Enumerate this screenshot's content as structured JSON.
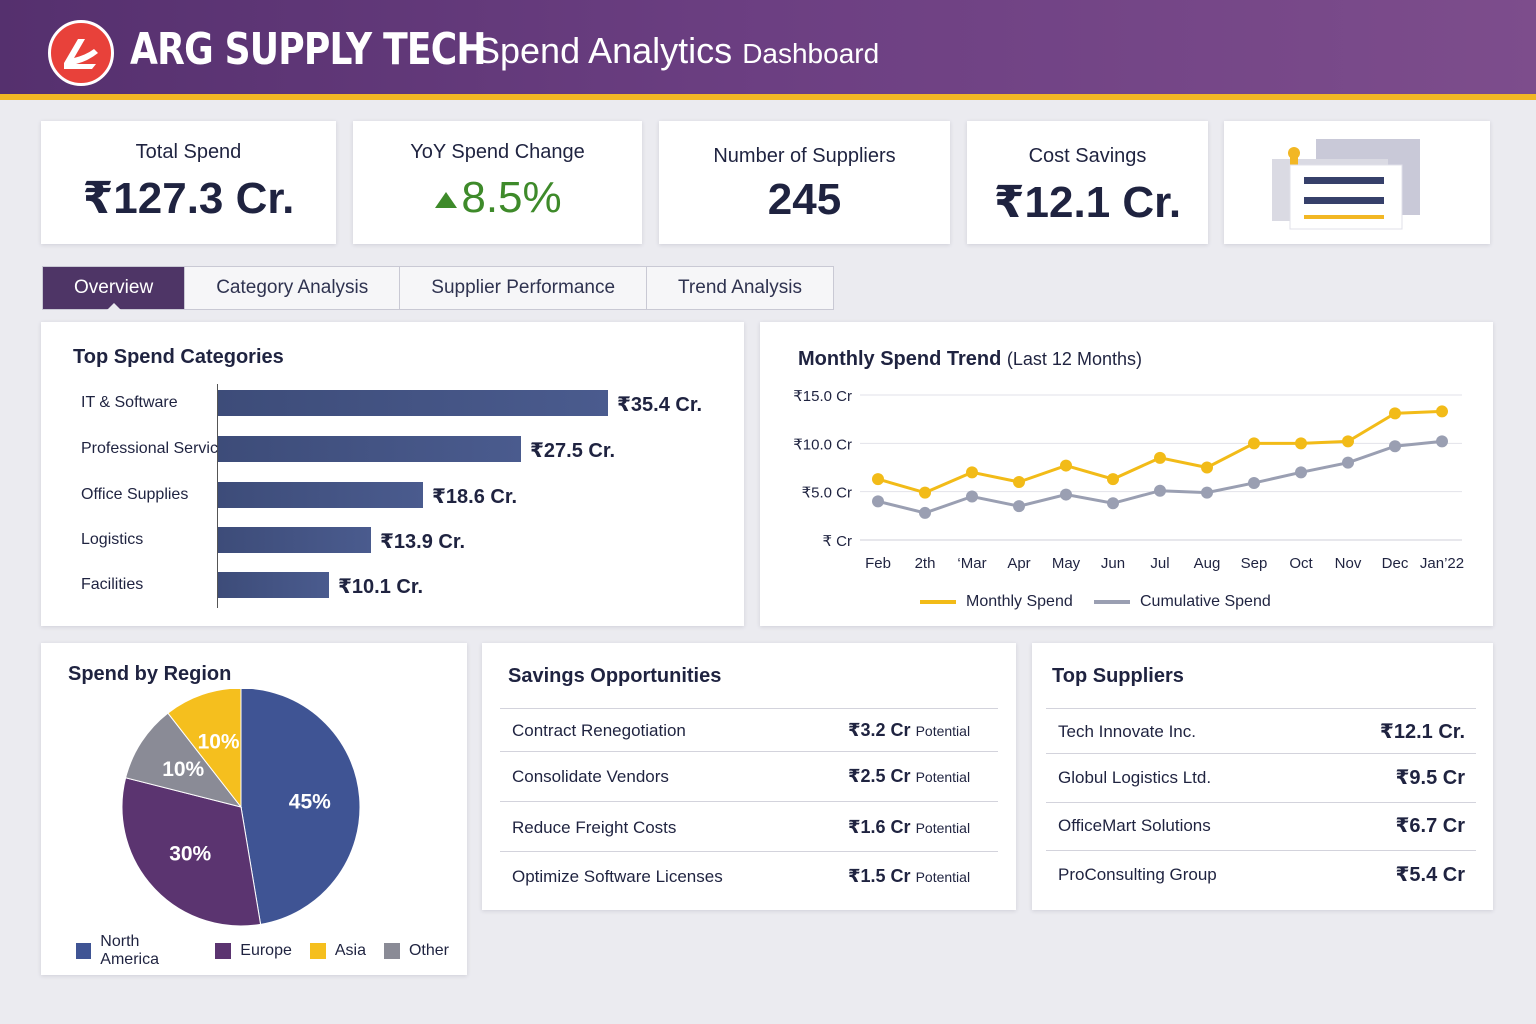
{
  "header": {
    "brand": "ARG SUPPLY TECH",
    "title_main": "Spend Analytics",
    "title_sub": "Dashboard",
    "logo_icon": "arg-logo-icon",
    "accent": "#f2b724",
    "bar_color": "#6c3f82"
  },
  "kpis": {
    "total_spend": {
      "label": "Total Spend",
      "value": "₹127.3 Cr."
    },
    "yoy_change": {
      "label": "YoY Spend Change",
      "value": "8.5%",
      "trend": "up",
      "trend_icon": "triangle-up-icon",
      "color": "#3e8a2a"
    },
    "suppliers": {
      "label": "Number of Suppliers",
      "value": "245"
    },
    "cost_savings": {
      "label": "Cost Savings",
      "value": "₹12.1 Cr."
    },
    "report_icon": "report-document-icon"
  },
  "tabs": [
    {
      "label": "Overview",
      "active": true
    },
    {
      "label": "Category Analysis",
      "active": false
    },
    {
      "label": "Supplier Performance",
      "active": false
    },
    {
      "label": "Trend Analysis",
      "active": false
    }
  ],
  "top_categories": {
    "title": "Top Spend Categories",
    "items": [
      {
        "label": "IT & Software",
        "value": 35.4,
        "value_label": "₹35.4 Cr."
      },
      {
        "label": "Professional Services",
        "value": 27.5,
        "value_label": "₹27.5 Cr."
      },
      {
        "label": "Office Supplies",
        "value": 18.6,
        "value_label": "₹18.6 Cr."
      },
      {
        "label": "Logistics",
        "value": 13.9,
        "value_label": "₹13.9 Cr."
      },
      {
        "label": "Facilities",
        "value": 10.1,
        "value_label": "₹10.1 Cr."
      }
    ]
  },
  "monthly_trend": {
    "title": "Monthly Spend Trend",
    "subtitle": "(Last 12 Months)"
  },
  "spend_by_region": {
    "title": "Spend by Region"
  },
  "savings": {
    "title": "Savings Opportunities",
    "potential_label": "Potential",
    "items": [
      {
        "label": "Contract Renegotiation",
        "amount": "₹3.2 Cr"
      },
      {
        "label": "Consolidate Vendors",
        "amount": "₹2.5 Cr"
      },
      {
        "label": "Reduce Freight Costs",
        "amount": "₹1.6 Cr"
      },
      {
        "label": "Optimize Software Licenses",
        "amount": "₹1.5 Cr"
      }
    ]
  },
  "top_suppliers": {
    "title": "Top Suppliers",
    "items": [
      {
        "name": "Tech Innovate Inc.",
        "value": "₹12.1 Cr."
      },
      {
        "name": "Globul Logistics Ltd.",
        "value": "₹9.5 Cr"
      },
      {
        "name": "OfficeMart Solutions",
        "value": "₹6.7 Cr"
      },
      {
        "name": "ProConsulting Group",
        "value": "₹5.4 Cr"
      }
    ]
  },
  "chart_data": [
    {
      "type": "bar",
      "title": "Top Spend Categories",
      "orientation": "horizontal",
      "categories": [
        "IT & Software",
        "Professional Services",
        "Office Supplies",
        "Logistics",
        "Facilities"
      ],
      "values": [
        35.4,
        27.5,
        18.6,
        13.9,
        10.1
      ],
      "value_labels": [
        "₹35.4 Cr.",
        "₹27.5 Cr.",
        "₹18.6 Cr.",
        "₹13.9 Cr.",
        "₹10.1 Cr."
      ],
      "color": "#44547f"
    },
    {
      "type": "line",
      "title": "Monthly Spend Trend",
      "subtitle": "(Last 12 Months)",
      "x": [
        "Feb",
        "2th",
        "‘Mar",
        "Apr",
        "May",
        "Jun",
        "Jul",
        "Aug",
        "Sep",
        "Oct",
        "Nov",
        "Dec",
        "Jan’22"
      ],
      "series": [
        {
          "name": "Monthly Spend",
          "color": "#f2bb18",
          "values": [
            6.3,
            4.9,
            7.0,
            6.0,
            7.7,
            6.3,
            8.5,
            7.5,
            10.0,
            10.0,
            10.2,
            13.1,
            13.3
          ]
        },
        {
          "name": "Cumulative Spend",
          "color": "#9a9fb2",
          "values": [
            4.0,
            2.8,
            4.5,
            3.5,
            4.7,
            3.8,
            5.1,
            4.9,
            5.9,
            7.0,
            8.0,
            9.7,
            10.2
          ]
        }
      ],
      "yticks": [
        "₹ Cr",
        "₹5.0 Cr",
        "₹10.0 Cr",
        "₹15.0 Cr"
      ],
      "ylim": [
        0,
        15
      ],
      "grid": true,
      "legend": "bottom"
    },
    {
      "type": "pie",
      "title": "Spend by Region",
      "labels": [
        "North America",
        "Europe",
        "Other",
        "Asia"
      ],
      "values": [
        45,
        30,
        10,
        10
      ],
      "value_labels": [
        "45%",
        "30%",
        "10%",
        "10%"
      ],
      "colors": [
        "#3f5494",
        "#5b3470",
        "#8a8b96",
        "#f5bf1e"
      ],
      "legend_order": [
        "North America",
        "Europe",
        "Asia",
        "Other"
      ],
      "legend_colors": [
        "#3f5494",
        "#5b3470",
        "#f5bf1e",
        "#8a8b96"
      ],
      "legend": "bottom"
    }
  ]
}
